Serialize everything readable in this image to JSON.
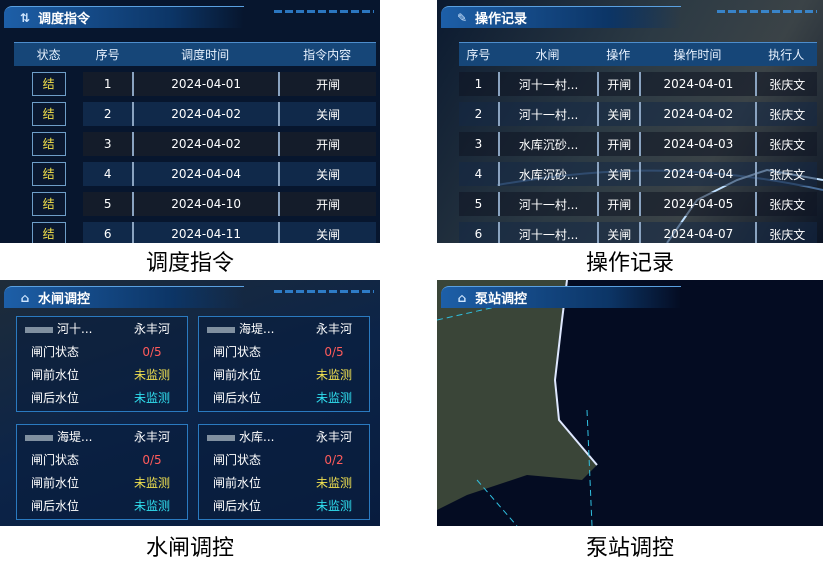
{
  "dispatch": {
    "title": "调度指令",
    "headers": [
      "状态",
      "序号",
      "调度时间",
      "指令内容"
    ],
    "rows": [
      {
        "status": "结",
        "no": "1",
        "time": "2024-04-01",
        "cmd": "开闸"
      },
      {
        "status": "结",
        "no": "2",
        "time": "2024-04-02",
        "cmd": "关闸"
      },
      {
        "status": "结",
        "no": "3",
        "time": "2024-04-02",
        "cmd": "开闸"
      },
      {
        "status": "结",
        "no": "4",
        "time": "2024-04-04",
        "cmd": "关闸"
      },
      {
        "status": "结",
        "no": "5",
        "time": "2024-04-10",
        "cmd": "开闸"
      },
      {
        "status": "结",
        "no": "6",
        "time": "2024-04-11",
        "cmd": "关闸"
      }
    ]
  },
  "oplog": {
    "title": "操作记录",
    "headers": [
      "序号",
      "水闸",
      "操作",
      "操作时间",
      "执行人"
    ],
    "rows": [
      {
        "no": "1",
        "gate": "河十一村...",
        "op": "开闸",
        "time": "2024-04-01",
        "user": "张庆文"
      },
      {
        "no": "2",
        "gate": "河十一村...",
        "op": "关闸",
        "time": "2024-04-02",
        "user": "张庆文"
      },
      {
        "no": "3",
        "gate": "水库沉砂...",
        "op": "开闸",
        "time": "2024-04-03",
        "user": "张庆文"
      },
      {
        "no": "4",
        "gate": "水库沉砂...",
        "op": "关闸",
        "time": "2024-04-04",
        "user": "张庆文"
      },
      {
        "no": "5",
        "gate": "河十一村...",
        "op": "开闸",
        "time": "2024-04-05",
        "user": "张庆文"
      },
      {
        "no": "6",
        "gate": "河十一村...",
        "op": "关闸",
        "time": "2024-04-07",
        "user": "张庆文"
      }
    ]
  },
  "sluice": {
    "title": "水闸调控",
    "labels": {
      "gate": "闸门状态",
      "front": "闸前水位",
      "back": "闸后水位"
    },
    "cards": [
      {
        "name": "河十...",
        "river": "永丰河",
        "gate": "0/5",
        "front": "未监测",
        "back": "未监测"
      },
      {
        "name": "海堤...",
        "river": "永丰河",
        "gate": "0/5",
        "front": "未监测",
        "back": "未监测"
      },
      {
        "name": "海堤...",
        "river": "永丰河",
        "gate": "0/5",
        "front": "未监测",
        "back": "未监测"
      },
      {
        "name": "水库...",
        "river": "永丰河",
        "gate": "0/2",
        "front": "未监测",
        "back": "未监测"
      }
    ]
  },
  "pump": {
    "title": "泵站调控"
  },
  "captions": [
    "调度指令",
    "操作记录",
    "水闸调控",
    "泵站调控"
  ],
  "colors": {
    "alarm": "#ff5b5b",
    "front": "#f0e050",
    "back": "#30e0f0",
    "status_tag": "#f2e04a"
  }
}
